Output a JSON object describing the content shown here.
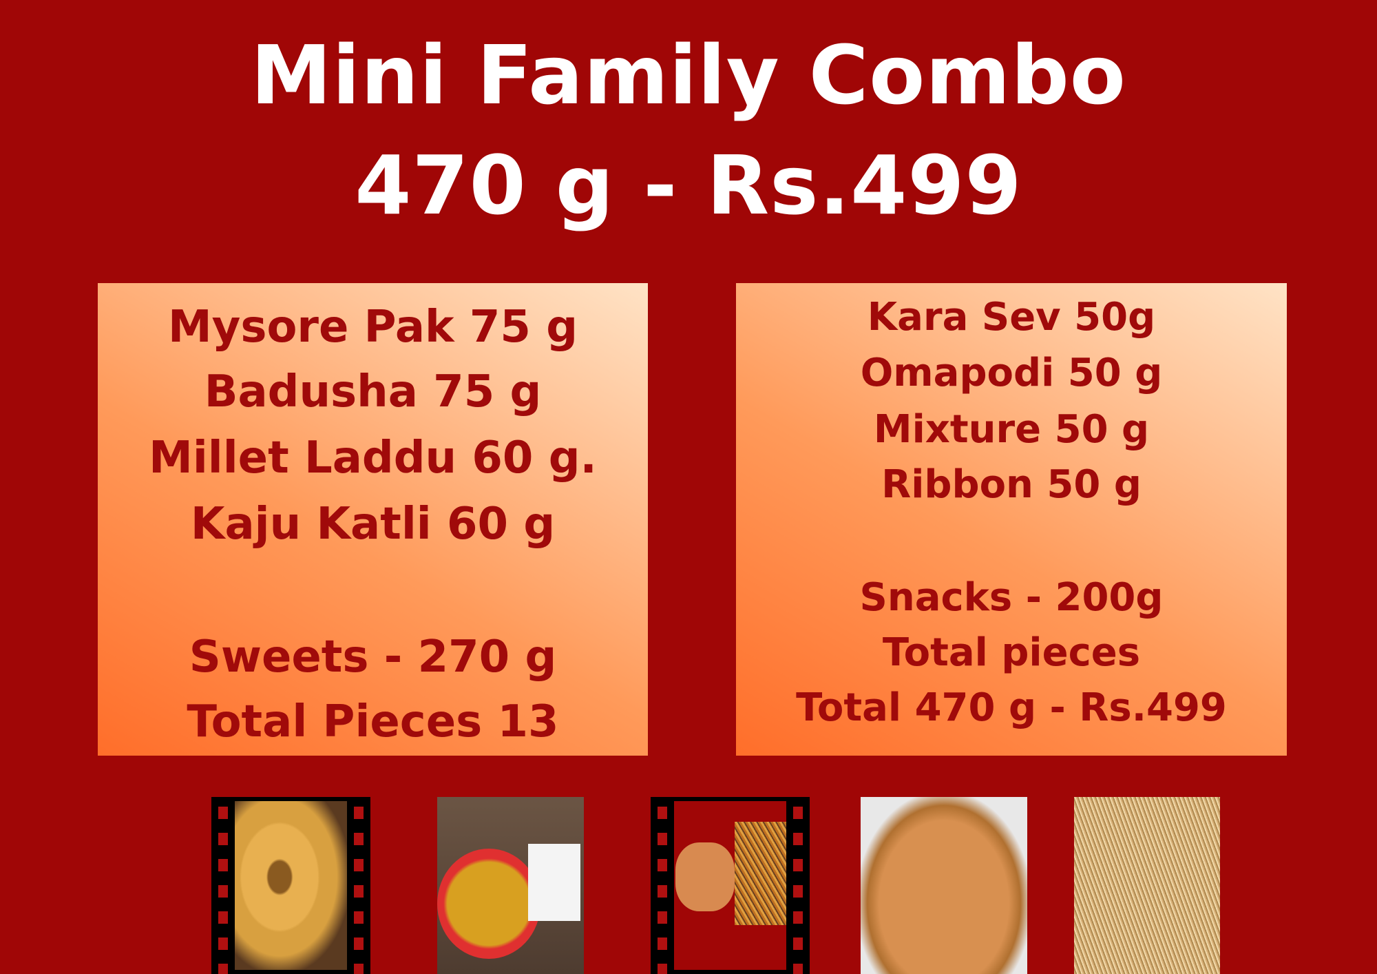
{
  "header": {
    "title": "Mini Family Combo",
    "price_line": "470 g - Rs.499"
  },
  "sweets_box": {
    "items": [
      "Mysore Pak 75 g",
      "Badusha 75 g",
      "Millet Laddu 60 g.",
      "Kaju Katli 60 g"
    ],
    "subtotal": "Sweets - 270 g",
    "pieces": "Total Pieces 13"
  },
  "snacks_box": {
    "items": [
      "Kara Sev 50g",
      "Omapodi 50 g",
      "Mixture 50 g",
      "Ribbon 50 g"
    ],
    "subtotal": "Snacks - 200g",
    "pieces": "Total pieces",
    "total": "Total 470 g - Rs.499"
  },
  "photos": [
    "murukku-photo",
    "mixture-bowl-photo",
    "chips-and-mixture-photo",
    "ribbon-pakoda-photo",
    "kara-sev-photo"
  ],
  "colors": {
    "background": "#a00606",
    "text_dark_red": "#a00a0a",
    "box_gradient_dark": "#ff6e2a",
    "box_gradient_light": "#ffe3c6",
    "title": "#ffffff"
  }
}
